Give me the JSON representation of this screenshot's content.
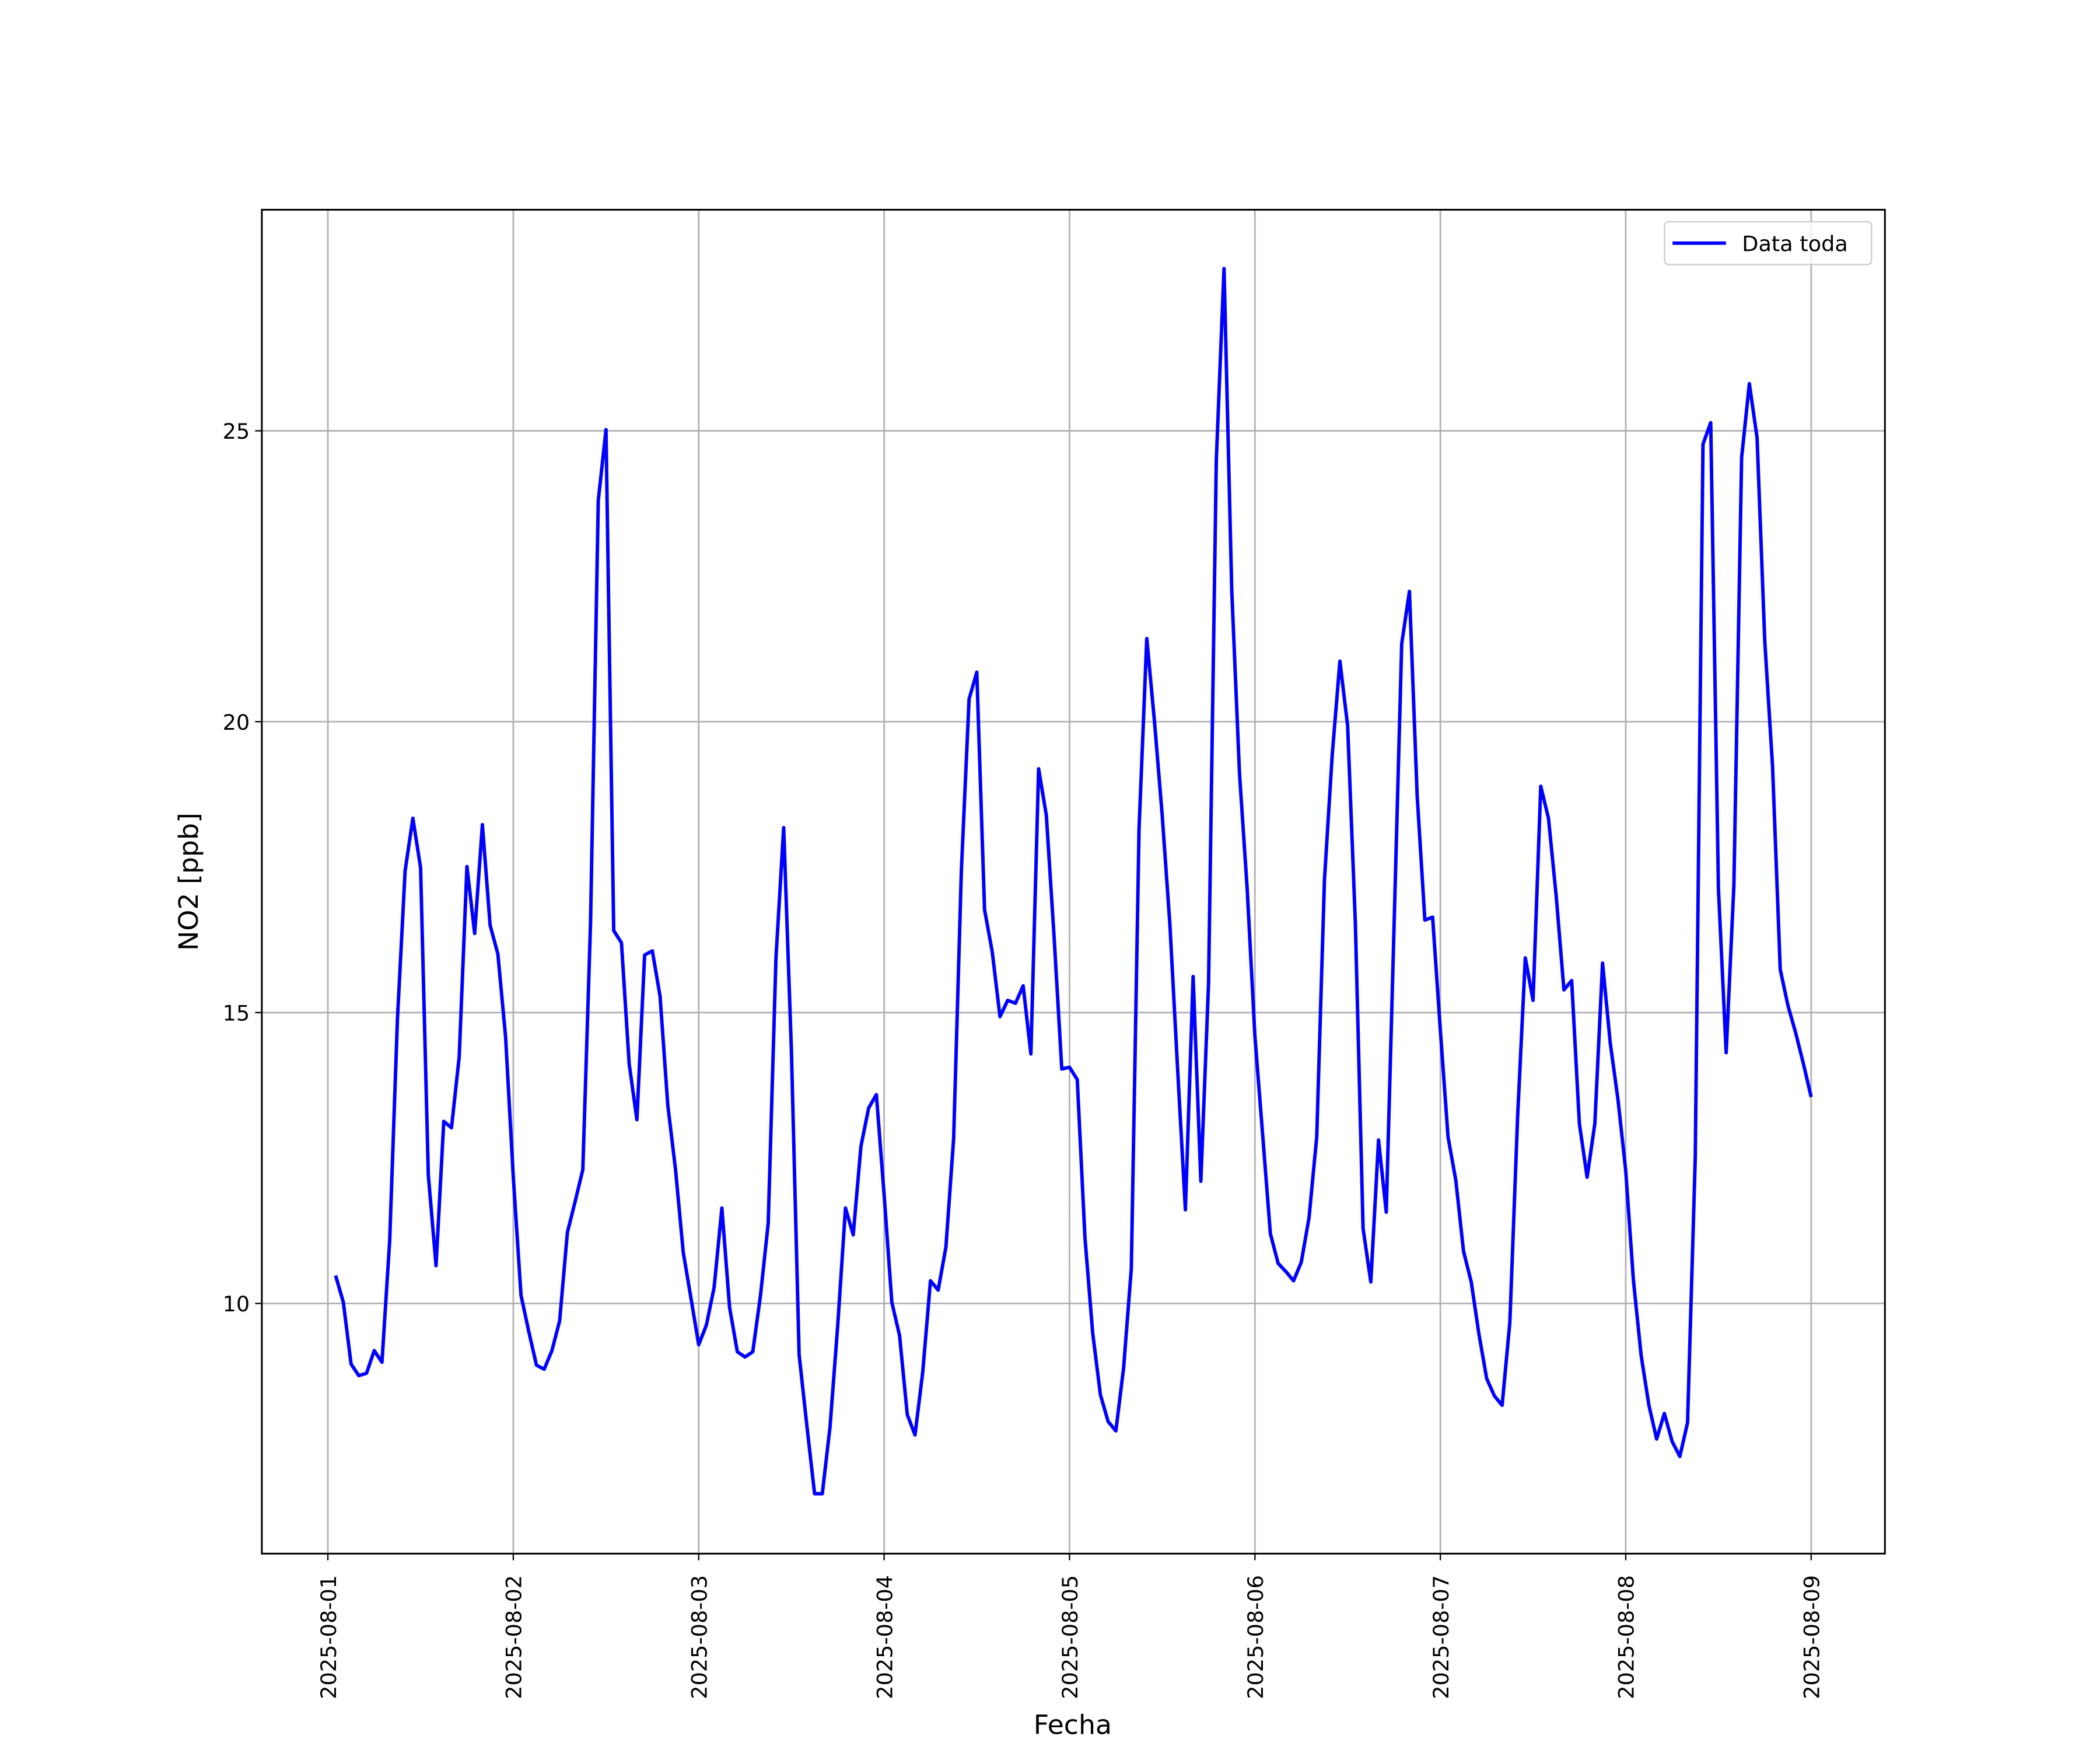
{
  "chart_data": {
    "type": "line",
    "xlabel": "Fecha",
    "ylabel": "NO2 [ppb]",
    "grid": true,
    "legend": "upper right",
    "series": [
      {
        "name": "Data toda",
        "color": "#0000ff",
        "x": [
          "2025-08-01 01:00",
          "2025-08-01 02:00",
          "2025-08-01 03:00",
          "2025-08-01 04:00",
          "2025-08-01 05:00",
          "2025-08-01 06:00",
          "2025-08-01 07:00",
          "2025-08-01 08:00",
          "2025-08-01 09:00",
          "2025-08-01 10:00",
          "2025-08-01 11:00",
          "2025-08-01 12:00",
          "2025-08-01 13:00",
          "2025-08-01 14:00",
          "2025-08-01 15:00",
          "2025-08-01 16:00",
          "2025-08-01 17:00",
          "2025-08-01 18:00",
          "2025-08-01 19:00",
          "2025-08-01 20:00",
          "2025-08-01 21:00",
          "2025-08-01 22:00",
          "2025-08-01 23:00",
          "2025-08-02 00:00",
          "2025-08-02 01:00",
          "2025-08-02 02:00",
          "2025-08-02 03:00",
          "2025-08-02 04:00",
          "2025-08-02 05:00",
          "2025-08-02 06:00",
          "2025-08-02 07:00",
          "2025-08-02 08:00",
          "2025-08-02 09:00",
          "2025-08-02 10:00",
          "2025-08-02 11:00",
          "2025-08-02 12:00",
          "2025-08-02 13:00",
          "2025-08-02 14:00",
          "2025-08-02 15:00",
          "2025-08-02 16:00",
          "2025-08-02 17:00",
          "2025-08-02 18:00",
          "2025-08-02 19:00",
          "2025-08-02 20:00",
          "2025-08-02 21:00",
          "2025-08-02 22:00",
          "2025-08-02 23:00",
          "2025-08-03 00:00",
          "2025-08-03 01:00",
          "2025-08-03 02:00",
          "2025-08-03 03:00",
          "2025-08-03 04:00",
          "2025-08-03 05:00",
          "2025-08-03 06:00",
          "2025-08-03 07:00",
          "2025-08-03 08:00",
          "2025-08-03 09:00",
          "2025-08-03 10:00",
          "2025-08-03 11:00",
          "2025-08-03 12:00",
          "2025-08-03 13:00",
          "2025-08-03 14:00",
          "2025-08-03 15:00",
          "2025-08-03 16:00",
          "2025-08-03 17:00",
          "2025-08-03 18:00",
          "2025-08-03 19:00",
          "2025-08-03 20:00",
          "2025-08-03 21:00",
          "2025-08-03 22:00",
          "2025-08-03 23:00",
          "2025-08-04 00:00",
          "2025-08-04 01:00",
          "2025-08-04 02:00",
          "2025-08-04 03:00",
          "2025-08-04 04:00",
          "2025-08-04 05:00",
          "2025-08-04 06:00",
          "2025-08-04 07:00",
          "2025-08-04 08:00",
          "2025-08-04 09:00",
          "2025-08-04 10:00",
          "2025-08-04 11:00",
          "2025-08-04 12:00",
          "2025-08-04 13:00",
          "2025-08-04 14:00",
          "2025-08-04 15:00",
          "2025-08-04 16:00",
          "2025-08-04 17:00",
          "2025-08-04 18:00",
          "2025-08-04 19:00",
          "2025-08-04 20:00",
          "2025-08-04 21:00",
          "2025-08-04 22:00",
          "2025-08-04 23:00",
          "2025-08-05 00:00",
          "2025-08-05 01:00",
          "2025-08-05 02:00",
          "2025-08-05 03:00",
          "2025-08-05 04:00",
          "2025-08-05 05:00",
          "2025-08-05 06:00",
          "2025-08-05 07:00",
          "2025-08-05 08:00",
          "2025-08-05 09:00",
          "2025-08-05 10:00",
          "2025-08-05 11:00",
          "2025-08-05 12:00",
          "2025-08-05 13:00",
          "2025-08-05 14:00",
          "2025-08-05 15:00",
          "2025-08-05 16:00",
          "2025-08-05 17:00",
          "2025-08-05 18:00",
          "2025-08-05 19:00",
          "2025-08-05 20:00",
          "2025-08-05 21:00",
          "2025-08-05 22:00",
          "2025-08-05 23:00",
          "2025-08-06 00:00",
          "2025-08-06 01:00",
          "2025-08-06 02:00",
          "2025-08-06 03:00",
          "2025-08-06 04:00",
          "2025-08-06 05:00",
          "2025-08-06 06:00",
          "2025-08-06 07:00",
          "2025-08-06 08:00",
          "2025-08-06 09:00",
          "2025-08-06 10:00",
          "2025-08-06 11:00",
          "2025-08-06 12:00",
          "2025-08-06 13:00",
          "2025-08-06 14:00",
          "2025-08-06 15:00",
          "2025-08-06 16:00",
          "2025-08-06 17:00",
          "2025-08-06 18:00",
          "2025-08-06 19:00",
          "2025-08-06 20:00",
          "2025-08-06 21:00",
          "2025-08-06 22:00",
          "2025-08-06 23:00",
          "2025-08-07 00:00",
          "2025-08-07 01:00",
          "2025-08-07 02:00",
          "2025-08-07 03:00",
          "2025-08-07 04:00",
          "2025-08-07 05:00",
          "2025-08-07 06:00",
          "2025-08-07 07:00",
          "2025-08-07 08:00",
          "2025-08-07 09:00",
          "2025-08-07 10:00",
          "2025-08-07 11:00",
          "2025-08-07 12:00",
          "2025-08-07 13:00",
          "2025-08-07 14:00",
          "2025-08-07 15:00",
          "2025-08-07 16:00",
          "2025-08-07 17:00",
          "2025-08-07 18:00",
          "2025-08-07 19:00",
          "2025-08-07 20:00",
          "2025-08-07 21:00",
          "2025-08-07 22:00",
          "2025-08-07 23:00",
          "2025-08-08 00:00",
          "2025-08-08 01:00",
          "2025-08-08 02:00",
          "2025-08-08 03:00",
          "2025-08-08 04:00",
          "2025-08-08 05:00",
          "2025-08-08 06:00",
          "2025-08-08 07:00",
          "2025-08-08 08:00",
          "2025-08-08 09:00",
          "2025-08-08 10:00",
          "2025-08-08 11:00",
          "2025-08-08 12:00",
          "2025-08-08 13:00",
          "2025-08-08 14:00",
          "2025-08-08 15:00",
          "2025-08-08 16:00",
          "2025-08-08 17:00",
          "2025-08-08 18:00",
          "2025-08-08 19:00",
          "2025-08-08 20:00",
          "2025-08-08 21:00",
          "2025-08-08 22:00",
          "2025-08-08 23:00",
          "2025-08-09 00:00"
        ],
        "values": [
          10.48,
          10.02,
          8.96,
          8.76,
          8.8,
          9.19,
          8.99,
          11.08,
          14.88,
          17.44,
          18.34,
          17.49,
          12.21,
          10.65,
          13.13,
          13.02,
          14.24,
          17.51,
          16.36,
          18.23,
          16.5,
          16.01,
          14.59,
          12.17,
          10.14,
          9.52,
          8.94,
          8.87,
          9.19,
          9.7,
          11.22,
          11.75,
          12.3,
          16.54,
          23.8,
          25.02,
          16.41,
          16.2,
          14.12,
          13.16,
          15.99,
          16.06,
          15.28,
          13.41,
          12.3,
          10.88,
          10.09,
          9.29,
          9.63,
          10.28,
          11.64,
          9.93,
          9.17,
          9.08,
          9.17,
          10.14,
          11.38,
          15.94,
          18.18,
          14.35,
          9.12,
          7.9,
          6.73,
          6.73,
          7.88,
          9.63,
          11.64,
          11.18,
          12.7,
          13.36,
          13.59,
          11.87,
          10.02,
          9.45,
          8.09,
          7.74,
          8.82,
          10.39,
          10.23,
          10.97,
          12.83,
          17.44,
          20.39,
          20.85,
          16.77,
          16.04,
          14.93,
          15.21,
          15.16,
          15.46,
          14.29,
          19.19,
          18.39,
          16.31,
          14.03,
          14.06,
          13.85,
          11.13,
          9.49,
          8.43,
          7.97,
          7.81,
          8.89,
          10.6,
          18.16,
          21.43,
          20.0,
          18.39,
          16.5,
          14.01,
          11.61,
          15.62,
          12.1,
          15.51,
          24.49,
          27.79,
          22.26,
          19.12,
          17.12,
          14.59,
          12.9,
          11.2,
          10.69,
          10.55,
          10.39,
          10.71,
          11.47,
          12.86,
          17.28,
          19.42,
          21.04,
          19.93,
          16.54,
          11.29,
          10.37,
          12.81,
          11.57,
          16.43,
          21.34,
          22.24,
          18.73,
          16.59,
          16.64,
          14.7,
          12.86,
          12.12,
          10.9,
          10.37,
          9.47,
          8.71,
          8.41,
          8.25,
          9.68,
          13.2,
          15.94,
          15.21,
          18.89,
          18.34,
          17.0,
          15.39,
          15.55,
          13.09,
          12.17,
          13.09,
          15.85,
          14.47,
          13.5,
          12.28,
          10.39,
          9.1,
          8.25,
          7.67,
          8.11,
          7.63,
          7.37,
          7.95,
          12.51,
          24.77,
          25.14,
          17.12,
          14.31,
          17.19,
          24.54,
          25.81,
          24.88,
          21.38,
          19.24,
          15.74,
          15.12,
          14.65,
          14.12,
          13.55
        ]
      }
    ],
    "xlim": [
      "2025-07-31 15:27",
      "2025-08-09 09:33"
    ],
    "xticks": [
      "2025-08-01",
      "2025-08-02",
      "2025-08-03",
      "2025-08-04",
      "2025-08-05",
      "2025-08-06",
      "2025-08-07",
      "2025-08-08",
      "2025-08-09"
    ],
    "ylim": [
      5.7,
      28.8
    ],
    "yticks": [
      10,
      15,
      20,
      25
    ]
  }
}
